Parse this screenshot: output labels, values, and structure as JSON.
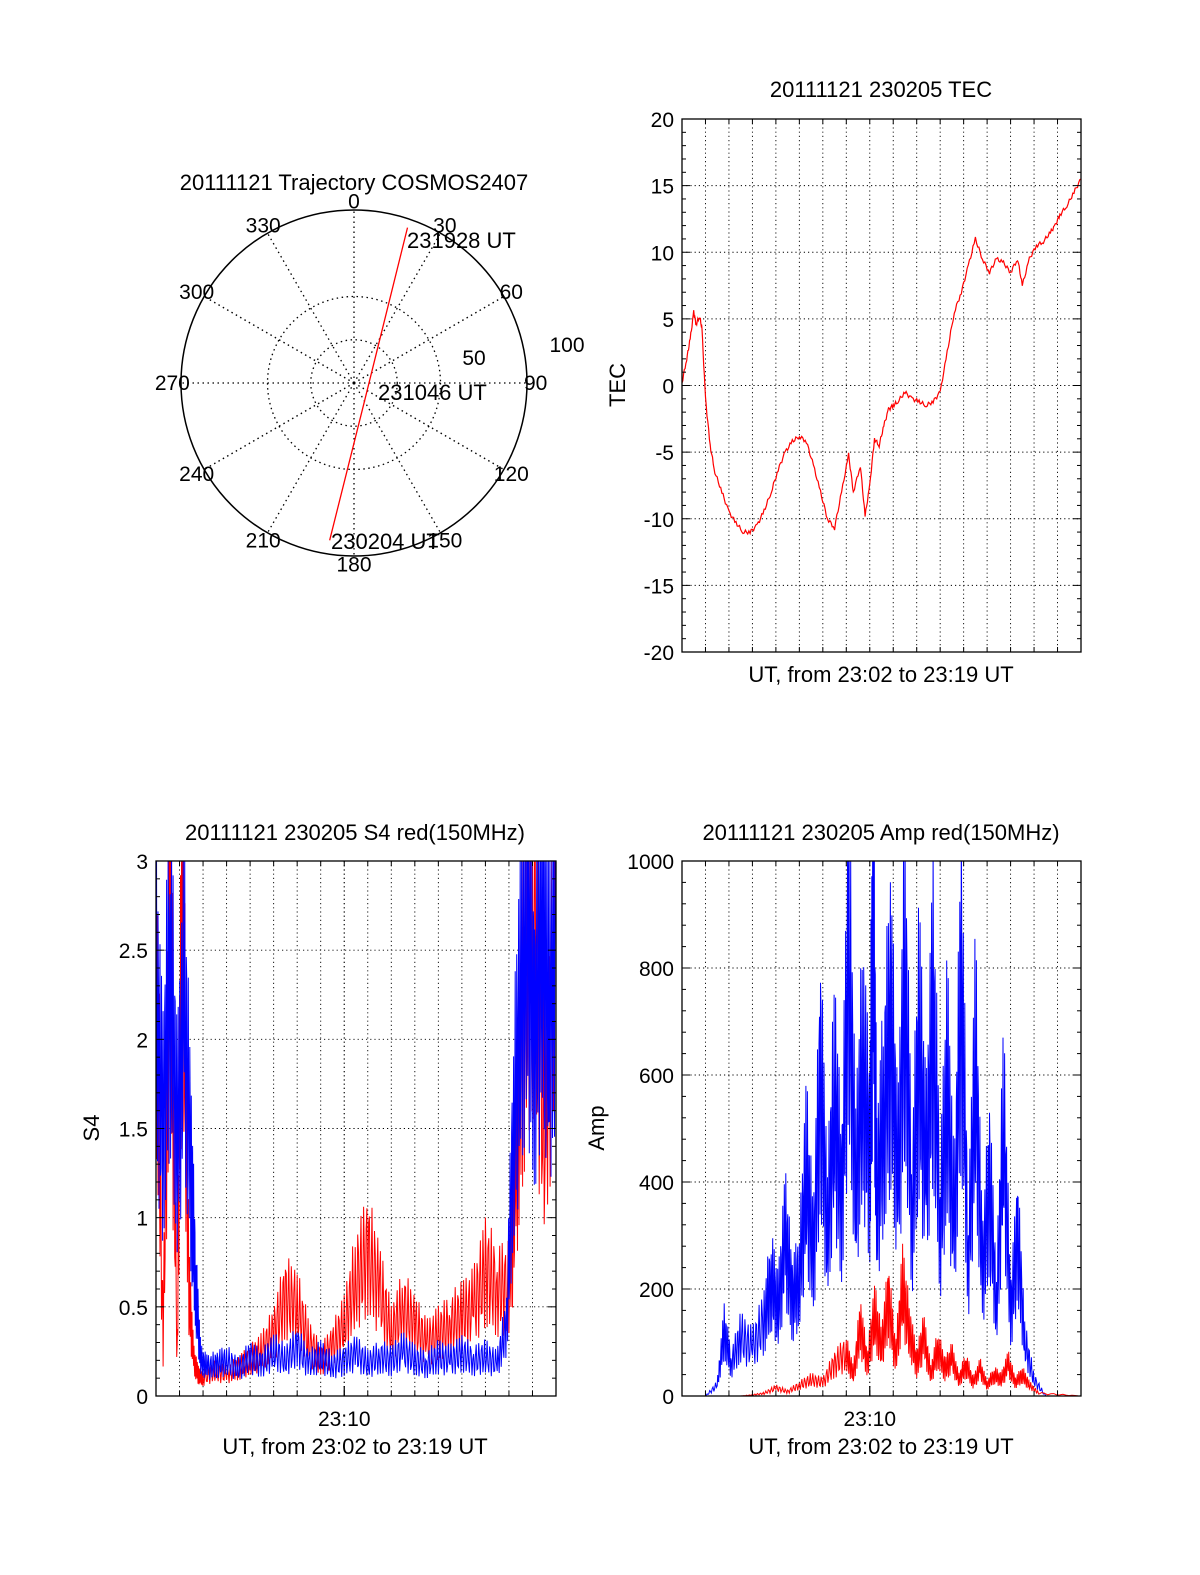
{
  "figure": {
    "background": "#ffffff",
    "trace_colors": {
      "red": "#ff0000",
      "blue": "#0000ff"
    }
  },
  "chart_data": [
    {
      "type": "polar",
      "title": "20111121 Trajectory COSMOS2407",
      "azimuth_labels": [
        "0",
        "30",
        "60",
        "90",
        "120",
        "150",
        "180",
        "210",
        "240",
        "270",
        "300",
        "330"
      ],
      "radius_labels": [
        "50",
        "100"
      ],
      "radius_range": [
        0,
        100
      ],
      "grid": true,
      "series": [
        {
          "color": "#ff0000",
          "points": [
            {
              "time": "230204 UT",
              "azimuth": 188.8,
              "zenith": 92
            },
            {
              "time": "231046 UT",
              "azimuth": 157,
              "zenith": 14
            },
            {
              "time": "231928 UT",
              "azimuth": 19,
              "zenith": 95
            }
          ]
        }
      ],
      "annotations": [
        "231928 UT",
        "231046 UT",
        "230204 UT"
      ]
    },
    {
      "type": "line",
      "title": "20111121 230205 TEC",
      "xlabel": "UT, from 23:02 to 23:19 UT",
      "ylabel": "TEC",
      "xlim": [
        0,
        17
      ],
      "ylim": [
        -20,
        20
      ],
      "yticks": [
        "-20",
        "-15",
        "-10",
        "-5",
        "0",
        "5",
        "10",
        "15",
        "20"
      ],
      "grid": true,
      "series": [
        {
          "color": "#ff0000",
          "x": [
            0,
            0.2,
            0.35,
            0.5,
            0.6,
            0.75,
            0.85,
            1.0,
            1.2,
            1.4,
            1.7,
            2.0,
            2.3,
            2.6,
            2.9,
            3.2,
            3.5,
            3.8,
            4.1,
            4.4,
            4.7,
            5.0,
            5.3,
            5.6,
            5.9,
            6.2,
            6.5,
            6.8,
            7.1,
            7.3,
            7.6,
            7.8,
            8.0,
            8.2,
            8.4,
            8.6,
            8.8,
            9.0,
            9.2,
            9.5,
            9.8,
            10.1,
            10.4,
            10.7,
            11.0,
            11.3,
            11.6,
            11.9,
            12.2,
            12.5,
            12.8,
            13.1,
            13.4,
            13.7,
            14.0,
            14.3,
            14.5,
            14.8,
            15.1,
            15.4,
            15.7,
            15.9,
            16.1,
            16.4,
            16.7,
            17.0
          ],
          "y": [
            0.2,
            2.0,
            3.5,
            5.5,
            4.6,
            5.2,
            4.3,
            -1.0,
            -4.5,
            -6.5,
            -8.0,
            -9.5,
            -10.3,
            -11.0,
            -11.0,
            -10.5,
            -9.4,
            -8.0,
            -6.3,
            -5.0,
            -4.2,
            -3.8,
            -4.2,
            -6.0,
            -8.0,
            -10.0,
            -10.7,
            -8.0,
            -5.2,
            -8.0,
            -6.0,
            -9.8,
            -7.5,
            -4.0,
            -4.5,
            -3.0,
            -1.8,
            -1.5,
            -1.2,
            -0.5,
            -1.0,
            -1.2,
            -1.5,
            -1.2,
            -0.5,
            2.5,
            5.5,
            7.0,
            9.0,
            11.0,
            9.5,
            8.5,
            9.5,
            9.2,
            8.5,
            9.5,
            7.5,
            9.5,
            10.5,
            10.8,
            11.5,
            12.0,
            12.8,
            13.5,
            14.5,
            15.5
          ]
        }
      ]
    },
    {
      "type": "line",
      "title": "20111121 230205 S4 red(150MHz)",
      "xlabel": "UT, from 23:02 to 23:19 UT",
      "ylabel": "S4",
      "xlim": [
        0,
        17
      ],
      "ylim": [
        0,
        3
      ],
      "xtick_label": "23:10",
      "xtick_value": 8,
      "yticks": [
        "0",
        "0.5",
        "1",
        "1.5",
        "2",
        "2.5",
        "3"
      ],
      "grid": true,
      "series": [
        {
          "color": "#ff0000",
          "x": [
            0,
            0.3,
            0.6,
            0.9,
            1.1,
            1.4,
            1.6,
            1.8,
            2.0,
            2.5,
            3.0,
            3.5,
            4.0,
            4.5,
            5.0,
            5.5,
            6.0,
            6.5,
            7.0,
            7.5,
            8.0,
            8.5,
            9.0,
            9.5,
            10.0,
            10.5,
            11.0,
            11.5,
            12.0,
            12.5,
            13.0,
            13.5,
            14.0,
            14.5,
            15.0,
            15.3,
            15.6,
            16.0,
            16.5,
            17.0
          ],
          "y": [
            2.5,
            0.3,
            2.8,
            0.2,
            2.9,
            0.6,
            0.2,
            0.12,
            0.1,
            0.14,
            0.12,
            0.16,
            0.2,
            0.25,
            0.35,
            0.55,
            0.5,
            0.3,
            0.2,
            0.28,
            0.4,
            0.65,
            0.8,
            0.6,
            0.35,
            0.5,
            0.4,
            0.3,
            0.35,
            0.4,
            0.45,
            0.5,
            0.7,
            0.6,
            0.6,
            1.2,
            2.2,
            2.8,
            1.5,
            2.6
          ]
        },
        {
          "color": "#0000ff",
          "x": [
            0,
            0.3,
            0.6,
            0.9,
            1.2,
            1.5,
            1.7,
            1.9,
            2.2,
            2.6,
            3.0,
            3.5,
            4.0,
            4.5,
            5.0,
            5.5,
            6.0,
            6.5,
            7.0,
            7.5,
            8.0,
            8.5,
            9.0,
            9.5,
            10.0,
            10.5,
            11.0,
            11.5,
            12.0,
            12.5,
            13.0,
            13.5,
            14.0,
            14.5,
            14.9,
            15.2,
            15.5,
            15.8,
            16.1,
            16.4,
            16.7,
            17.0
          ],
          "y": [
            2.2,
            1.5,
            2.5,
            1.4,
            2.2,
            1.2,
            0.6,
            0.2,
            0.16,
            0.18,
            0.2,
            0.15,
            0.22,
            0.18,
            0.25,
            0.2,
            0.28,
            0.18,
            0.22,
            0.17,
            0.2,
            0.24,
            0.18,
            0.22,
            0.2,
            0.25,
            0.2,
            0.18,
            0.22,
            0.2,
            0.24,
            0.2,
            0.22,
            0.18,
            0.4,
            1.5,
            2.2,
            2.6,
            2.0,
            2.7,
            2.1,
            2.5
          ]
        }
      ]
    },
    {
      "type": "line",
      "title": "20111121 230205 Amp red(150MHz)",
      "xlabel": "UT, from 23:02 to 23:19 UT",
      "ylabel": "Amp",
      "xlim": [
        0,
        17
      ],
      "ylim": [
        0,
        1000
      ],
      "xtick_label": "23:10",
      "xtick_value": 8,
      "yticks": [
        "0",
        "200",
        "400",
        "600",
        "800",
        "1000"
      ],
      "grid": true,
      "series": [
        {
          "color": "#0000ff",
          "x": [
            0,
            1.0,
            1.5,
            1.8,
            2.1,
            2.5,
            3.0,
            3.5,
            3.8,
            4.1,
            4.4,
            4.7,
            5.0,
            5.3,
            5.6,
            5.9,
            6.2,
            6.5,
            6.8,
            7.1,
            7.4,
            7.7,
            8.0,
            8.15,
            8.3,
            8.6,
            8.9,
            9.2,
            9.5,
            9.8,
            10.1,
            10.4,
            10.7,
            11.0,
            11.3,
            11.6,
            11.9,
            12.2,
            12.5,
            12.8,
            13.1,
            13.4,
            13.7,
            14.0,
            14.3,
            14.6,
            15.0,
            15.5,
            17.0
          ],
          "y": [
            0,
            0,
            20,
            120,
            60,
            110,
            90,
            140,
            220,
            160,
            300,
            180,
            220,
            420,
            250,
            600,
            300,
            560,
            350,
            820,
            380,
            620,
            440,
            930,
            360,
            540,
            700,
            380,
            780,
            330,
            660,
            400,
            720,
            320,
            580,
            300,
            780,
            240,
            620,
            220,
            400,
            160,
            500,
            150,
            300,
            100,
            30,
            0,
            0
          ]
        },
        {
          "color": "#ff0000",
          "x": [
            0,
            2.5,
            3.0,
            3.5,
            4.0,
            4.5,
            5.0,
            5.5,
            6.0,
            6.5,
            7.0,
            7.3,
            7.6,
            7.9,
            8.2,
            8.5,
            8.8,
            9.1,
            9.4,
            9.7,
            10.0,
            10.3,
            10.6,
            10.9,
            11.2,
            11.5,
            11.8,
            12.1,
            12.4,
            12.7,
            13.0,
            13.3,
            13.6,
            13.9,
            14.2,
            14.5,
            14.8,
            15.2,
            17.0
          ],
          "y": [
            0,
            0,
            2,
            5,
            15,
            8,
            20,
            30,
            25,
            60,
            80,
            40,
            130,
            60,
            150,
            90,
            180,
            70,
            200,
            120,
            60,
            110,
            40,
            90,
            50,
            70,
            30,
            60,
            25,
            50,
            20,
            40,
            30,
            60,
            25,
            40,
            20,
            5,
            0
          ]
        }
      ]
    }
  ]
}
